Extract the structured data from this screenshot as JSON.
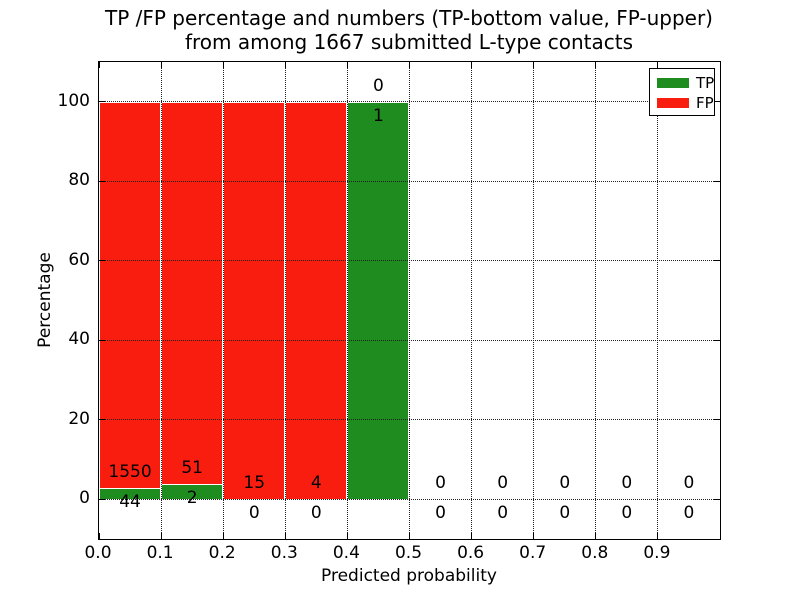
{
  "figure": {
    "title_line1": "TP /FP percentage and numbers (TP-bottom value, FP-upper)",
    "title_line2": "from among 1667 submitted L-type contacts"
  },
  "chart_data": {
    "type": "bar",
    "stacked": true,
    "title": "TP /FP percentage and numbers (TP-bottom value, FP-upper) from among 1667 submitted L-type contacts",
    "xlabel": "Predicted probability",
    "ylabel": "Percentage",
    "xlim": [
      0.0,
      1.0
    ],
    "ylim": [
      -10,
      110
    ],
    "grid": "dotted",
    "total_submitted_contacts": 1667,
    "x_ticks": [
      {
        "v": 0.0,
        "label": "0.0"
      },
      {
        "v": 0.1,
        "label": "0.1"
      },
      {
        "v": 0.2,
        "label": "0.2"
      },
      {
        "v": 0.3,
        "label": "0.3"
      },
      {
        "v": 0.4,
        "label": "0.4"
      },
      {
        "v": 0.5,
        "label": "0.5"
      },
      {
        "v": 0.6,
        "label": "0.6"
      },
      {
        "v": 0.7,
        "label": "0.7"
      },
      {
        "v": 0.8,
        "label": "0.8"
      },
      {
        "v": 0.9,
        "label": "0.9"
      }
    ],
    "y_ticks": [
      {
        "v": 0,
        "label": "0"
      },
      {
        "v": 20,
        "label": "20"
      },
      {
        "v": 40,
        "label": "40"
      },
      {
        "v": 60,
        "label": "60"
      },
      {
        "v": 80,
        "label": "80"
      },
      {
        "v": 100,
        "label": "100"
      }
    ],
    "legend": {
      "position": "upper right",
      "entries": [
        {
          "label": "TP",
          "color": "#1e8c1e"
        },
        {
          "label": "FP",
          "color": "#f91d10"
        }
      ]
    },
    "colors": {
      "tp": "#1e8c1e",
      "fp": "#f91d10",
      "grid": "#222222",
      "axis": "#000000"
    },
    "bins": [
      {
        "range": "0.0-0.1",
        "x0": 0.0,
        "x1": 0.1,
        "tp_count": 44,
        "fp_count": 1550,
        "tp_pct": 2.76,
        "fp_pct": 97.24
      },
      {
        "range": "0.1-0.2",
        "x0": 0.1,
        "x1": 0.2,
        "tp_count": 2,
        "fp_count": 51,
        "tp_pct": 3.77,
        "fp_pct": 96.23
      },
      {
        "range": "0.2-0.3",
        "x0": 0.2,
        "x1": 0.3,
        "tp_count": 0,
        "fp_count": 15,
        "tp_pct": 0,
        "fp_pct": 100
      },
      {
        "range": "0.3-0.4",
        "x0": 0.3,
        "x1": 0.4,
        "tp_count": 0,
        "fp_count": 4,
        "tp_pct": 0,
        "fp_pct": 100
      },
      {
        "range": "0.4-0.5",
        "x0": 0.4,
        "x1": 0.5,
        "tp_count": 1,
        "fp_count": 0,
        "tp_pct": 100,
        "fp_pct": 0
      },
      {
        "range": "0.5-0.6",
        "x0": 0.5,
        "x1": 0.6,
        "tp_count": 0,
        "fp_count": 0,
        "tp_pct": 0,
        "fp_pct": 0
      },
      {
        "range": "0.6-0.7",
        "x0": 0.6,
        "x1": 0.7,
        "tp_count": 0,
        "fp_count": 0,
        "tp_pct": 0,
        "fp_pct": 0
      },
      {
        "range": "0.7-0.8",
        "x0": 0.7,
        "x1": 0.8,
        "tp_count": 0,
        "fp_count": 0,
        "tp_pct": 0,
        "fp_pct": 0
      },
      {
        "range": "0.8-0.9",
        "x0": 0.8,
        "x1": 0.9,
        "tp_count": 0,
        "fp_count": 0,
        "tp_pct": 0,
        "fp_pct": 0
      },
      {
        "range": "0.9-1.0",
        "x0": 0.9,
        "x1": 1.0,
        "tp_count": 0,
        "fp_count": 0,
        "tp_pct": 0,
        "fp_pct": 0
      }
    ]
  }
}
